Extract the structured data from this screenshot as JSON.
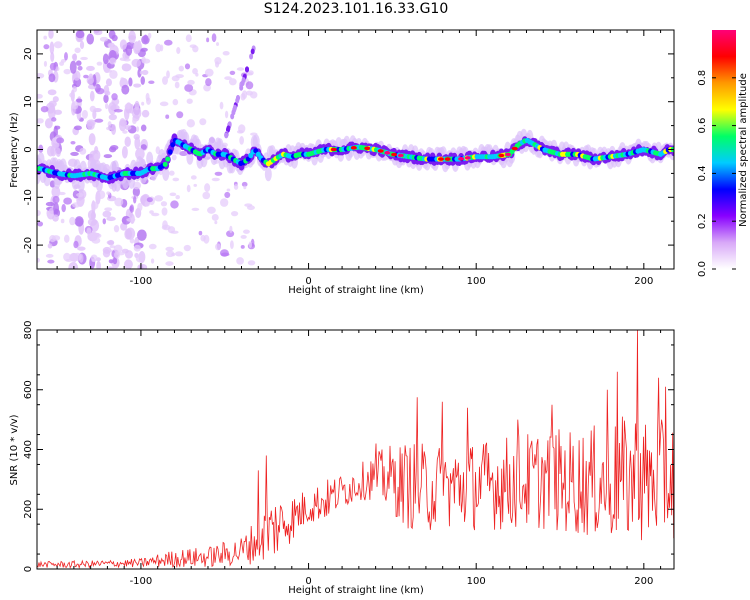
{
  "title": "S124.2023.101.16.33.G10",
  "chart_data": [
    {
      "type": "heatmap",
      "xlabel": "Height of straight line (km)",
      "ylabel": "Frequency (Hz)",
      "xlim": [
        -162,
        218
      ],
      "ylim": [
        -25,
        25
      ],
      "xticks": [
        -100,
        0,
        100,
        200
      ],
      "yticks": [
        -20,
        -10,
        0,
        10,
        20
      ],
      "colorbar": {
        "label": "Normalized spectral amplitude",
        "range": [
          0.0,
          1.0
        ],
        "ticks": [
          "0.0",
          "0.2",
          "0.4",
          "0.6",
          "0.8"
        ],
        "colors": [
          "#ffffff",
          "#d8a8f8",
          "#8800ff",
          "#0000ff",
          "#00ccff",
          "#00ff66",
          "#ffff00",
          "#ff9900",
          "#ff0000",
          "#ff0077"
        ]
      },
      "ridge": {
        "x": [
          -160,
          -150,
          -140,
          -130,
          -120,
          -110,
          -100,
          -95,
          -90,
          -85,
          -80,
          -75,
          -70,
          -65,
          -60,
          -55,
          -50,
          -45,
          -40,
          -36,
          -32,
          -28,
          -24,
          -20,
          -15,
          -10,
          -5,
          0,
          10,
          20,
          30,
          40,
          50,
          60,
          70,
          80,
          90,
          100,
          110,
          120,
          125,
          130,
          140,
          150,
          160,
          170,
          180,
          190,
          200,
          210,
          215
        ],
        "y": [
          -4,
          -5,
          -5.5,
          -5,
          -6,
          -5,
          -5,
          -4,
          -4,
          -3,
          2,
          1,
          0,
          -1,
          0,
          -1,
          -1,
          -2,
          -3,
          -2,
          0,
          -2,
          -3,
          -2,
          -1,
          -1.5,
          -1,
          -1,
          0,
          0,
          0.5,
          0,
          -1,
          -1.5,
          -2,
          -2,
          -2,
          -1.5,
          -1.5,
          -1,
          1,
          2,
          0,
          -1,
          -1,
          -2,
          -1.5,
          -1,
          0,
          -1,
          0
        ],
        "peak_amplitude": 1.0
      },
      "noise_streaks_x": [
        -152,
        -138,
        -128,
        -118,
        -108,
        -100
      ]
    },
    {
      "type": "line",
      "xlabel": "Height of straight line (km)",
      "ylabel": "SNR (10 * v/v)",
      "xlim": [
        -162,
        218
      ],
      "ylim": [
        0,
        800
      ],
      "xticks": [
        -100,
        0,
        100,
        200
      ],
      "yticks": [
        0,
        200,
        400,
        600,
        800
      ],
      "series": [
        {
          "color": "#ee2222",
          "envelope": {
            "x": [
              -162,
              -140,
              -120,
              -100,
              -80,
              -60,
              -40,
              -30,
              -20,
              -10,
              0,
              10,
              20,
              30,
              40,
              50,
              60,
              70,
              80,
              100,
              120,
              140,
              160,
              180,
              190,
              195,
              200,
              210,
              218
            ],
            "mean": [
              15,
              15,
              18,
              20,
              35,
              40,
              60,
              100,
              140,
              170,
              210,
              230,
              260,
              290,
              310,
              300,
              280,
              270,
              270,
              280,
              290,
              300,
              290,
              290,
              300,
              300,
              290,
              300,
              300
            ],
            "spread": [
              10,
              12,
              12,
              15,
              30,
              35,
              50,
              80,
              110,
              80,
              60,
              70,
              60,
              60,
              80,
              120,
              150,
              150,
              150,
              150,
              160,
              170,
              180,
              200,
              220,
              240,
              220,
              200,
              200
            ]
          },
          "spikes": [
            [
              -25,
              380
            ],
            [
              -30,
              330
            ],
            [
              40,
              420
            ],
            [
              65,
              575
            ],
            [
              80,
              560
            ],
            [
              95,
              540
            ],
            [
              125,
              500
            ],
            [
              145,
              550
            ],
            [
              178,
              600
            ],
            [
              184,
              660
            ],
            [
              196,
              800
            ],
            [
              209,
              640
            ],
            [
              213,
              610
            ]
          ]
        }
      ]
    }
  ]
}
